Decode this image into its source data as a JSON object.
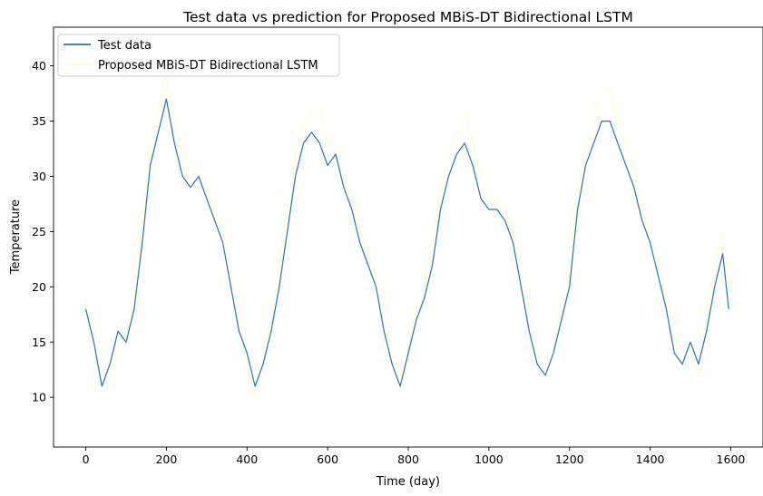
{
  "chart_data": {
    "type": "line",
    "title": "Test data vs prediction for Proposed MBiS-DT Bidirectional LSTM",
    "xlabel": "Time (day)",
    "ylabel": "Temperature",
    "xlim": [
      -80,
      1680
    ],
    "ylim": [
      5.5,
      43.5
    ],
    "xticks": [
      0,
      200,
      400,
      600,
      800,
      1000,
      1200,
      1400,
      1600
    ],
    "yticks": [
      10,
      15,
      20,
      25,
      30,
      35,
      40
    ],
    "grid": false,
    "legend": "upper-left",
    "series": [
      {
        "name": "Test data",
        "color": "#1f77b4",
        "x": [
          0,
          20,
          40,
          60,
          80,
          100,
          120,
          140,
          160,
          180,
          200,
          220,
          240,
          260,
          280,
          300,
          320,
          340,
          360,
          380,
          400,
          420,
          440,
          460,
          480,
          500,
          520,
          540,
          560,
          580,
          600,
          620,
          640,
          660,
          680,
          700,
          720,
          740,
          760,
          780,
          800,
          820,
          840,
          860,
          880,
          900,
          920,
          940,
          960,
          980,
          1000,
          1020,
          1040,
          1060,
          1080,
          1100,
          1120,
          1140,
          1160,
          1180,
          1200,
          1220,
          1240,
          1260,
          1280,
          1300,
          1320,
          1340,
          1360,
          1380,
          1400,
          1420,
          1440,
          1460,
          1480,
          1500,
          1520,
          1540,
          1560,
          1580,
          1595
        ],
        "values": [
          18,
          15,
          11,
          13,
          16,
          15,
          18,
          24,
          31,
          34,
          37,
          33,
          30,
          29,
          30,
          28,
          26,
          24,
          20,
          16,
          14,
          11,
          13,
          16,
          20,
          25,
          30,
          33,
          34,
          33,
          31,
          32,
          29,
          27,
          24,
          22,
          20,
          16,
          13,
          11,
          14,
          17,
          19,
          22,
          27,
          30,
          32,
          33,
          31,
          28,
          27,
          27,
          26,
          24,
          20,
          16,
          13,
          12,
          14,
          17,
          20,
          27,
          31,
          33,
          35,
          35,
          33,
          31,
          29,
          26,
          24,
          21,
          18,
          14,
          13,
          15,
          13,
          16,
          20,
          23,
          18
        ]
      },
      {
        "name": "Proposed MBiS-DT Bidirectional LSTM",
        "color": "#ffffcc",
        "x": [
          0,
          20,
          40,
          60,
          80,
          100,
          120,
          140,
          160,
          180,
          200,
          220,
          240,
          260,
          280,
          300,
          320,
          340,
          360,
          380,
          400,
          420,
          440,
          460,
          480,
          500,
          520,
          540,
          560,
          580,
          600,
          620,
          640,
          660,
          680,
          700,
          720,
          740,
          760,
          780,
          800,
          820,
          840,
          860,
          880,
          900,
          920,
          940,
          960,
          980,
          1000,
          1020,
          1040,
          1060,
          1080,
          1100,
          1120,
          1140,
          1160,
          1180,
          1200,
          1220,
          1240,
          1260,
          1280,
          1300,
          1320,
          1340,
          1360,
          1380,
          1400,
          1420,
          1440,
          1460,
          1480,
          1500,
          1520,
          1540,
          1560,
          1580,
          1595
        ],
        "values": [
          19,
          16,
          12,
          12,
          15,
          16,
          19,
          26,
          33,
          36,
          39,
          35,
          32,
          31,
          31,
          29,
          27,
          25,
          21,
          17,
          13,
          10,
          13,
          17,
          21,
          27,
          32,
          35,
          36,
          36,
          33,
          33,
          30,
          28,
          25,
          23,
          21,
          17,
          14,
          12,
          14,
          18,
          20,
          24,
          29,
          32,
          34,
          36,
          33,
          30,
          28,
          28,
          27,
          25,
          21,
          17,
          14,
          12,
          14,
          18,
          21,
          29,
          33,
          36,
          38,
          38,
          35,
          33,
          31,
          27,
          25,
          22,
          19,
          15,
          13,
          14,
          12,
          17,
          22,
          25,
          20
        ]
      }
    ]
  }
}
